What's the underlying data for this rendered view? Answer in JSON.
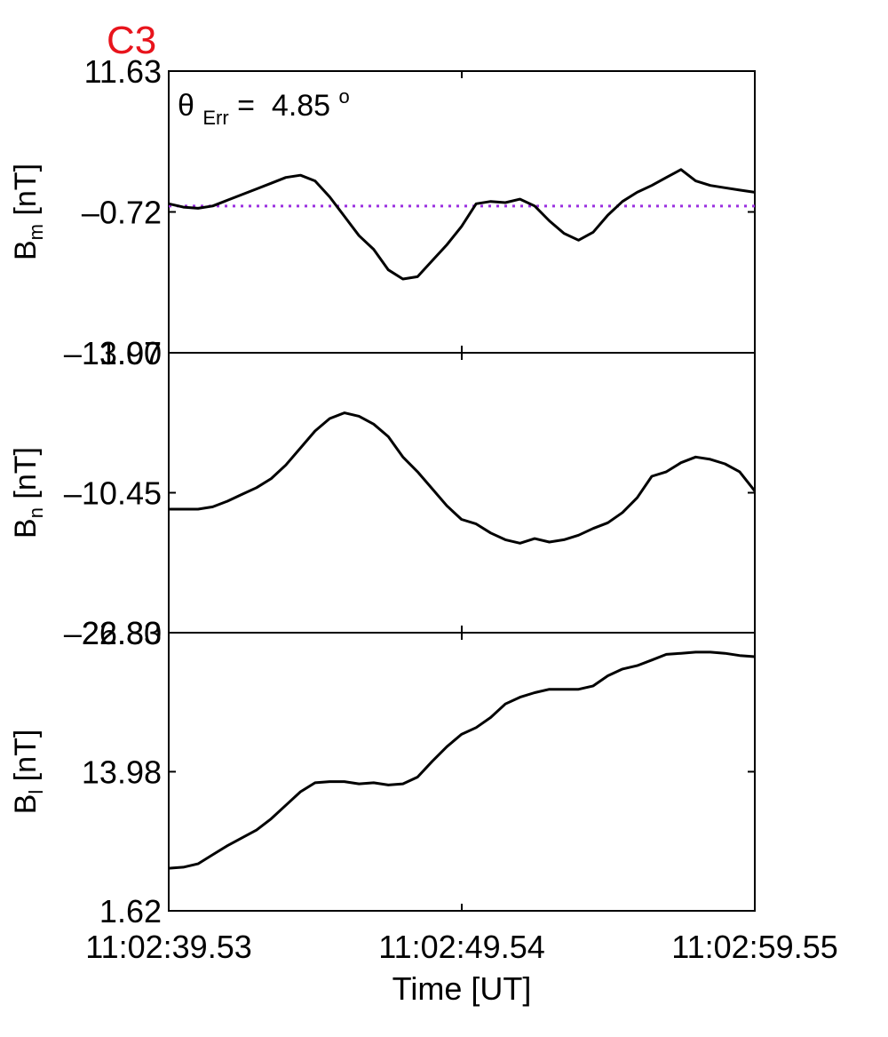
{
  "panel_label": "C3",
  "colors": {
    "label": "#e8141c",
    "trace": "#000000",
    "reference": "#9b30e0",
    "axis": "#000000"
  },
  "annotation": {
    "symbol": "θ",
    "subscript": "Err",
    "value_text": "=  4.85",
    "superscript": "o"
  },
  "x_axis": {
    "ticks": [
      "11:02:39.53",
      "11:02:49.54",
      "11:02:59.55"
    ],
    "label": "Time [UT]"
  },
  "chart_data": [
    {
      "type": "line",
      "panel": "top",
      "ylabel": {
        "main": "B",
        "sub": "m",
        "unit": "[nT]"
      },
      "ylim": [
        -13.07,
        11.63
      ],
      "yticks": [
        "11.63",
        "–0.72",
        "–13.07"
      ],
      "ytick_values": [
        11.63,
        -0.72,
        -13.07
      ],
      "xlim": [
        0,
        20.02
      ],
      "reference_line": {
        "y": -0.2,
        "style": "dotted"
      },
      "series": [
        {
          "x": [
            0,
            0.5,
            1,
            1.5,
            2,
            2.5,
            3,
            3.5,
            4,
            4.5,
            5,
            5.5,
            6,
            6.5,
            7,
            7.5,
            8,
            8.5,
            9,
            9.5,
            10,
            10.5,
            11,
            11.5,
            12,
            12.5,
            13,
            13.5,
            14,
            14.5,
            15,
            15.5,
            16,
            16.5,
            17,
            17.5,
            18,
            18.5,
            19,
            19.5,
            20.02
          ],
          "y": [
            0.0,
            -0.3,
            -0.4,
            -0.2,
            0.3,
            0.8,
            1.3,
            1.8,
            2.3,
            2.5,
            2.0,
            0.6,
            -1.1,
            -2.8,
            -4.0,
            -5.8,
            -6.6,
            -6.4,
            -5.0,
            -3.6,
            -2.0,
            0.0,
            0.2,
            0.1,
            0.4,
            -0.2,
            -1.5,
            -2.6,
            -3.2,
            -2.5,
            -1.0,
            0.2,
            1.0,
            1.6,
            2.3,
            3.0,
            2.0,
            1.6,
            1.4,
            1.2,
            1.0
          ]
        }
      ]
    },
    {
      "type": "line",
      "panel": "middle",
      "ylabel": {
        "main": "B",
        "sub": "n",
        "unit": "[nT]"
      },
      "ylim": [
        -22.8,
        1.9
      ],
      "yticks": [
        "1.90",
        "–10.45",
        "–22.80"
      ],
      "ytick_values": [
        1.9,
        -10.45,
        -22.8
      ],
      "xlim": [
        0,
        20.02
      ],
      "series": [
        {
          "x": [
            0,
            0.5,
            1,
            1.5,
            2,
            2.5,
            3,
            3.5,
            4,
            4.5,
            5,
            5.5,
            6,
            6.5,
            7,
            7.5,
            8,
            8.5,
            9,
            9.5,
            10,
            10.5,
            11,
            11.5,
            12,
            12.5,
            13,
            13.5,
            14,
            14.5,
            15,
            15.5,
            16,
            16.5,
            17,
            17.5,
            18,
            18.5,
            19,
            19.5,
            20.02
          ],
          "y": [
            -11.9,
            -11.9,
            -11.9,
            -11.7,
            -11.2,
            -10.6,
            -10.0,
            -9.2,
            -8.0,
            -6.5,
            -5.0,
            -3.9,
            -3.4,
            -3.7,
            -4.4,
            -5.5,
            -7.3,
            -8.6,
            -10.1,
            -11.6,
            -12.8,
            -13.2,
            -14.0,
            -14.6,
            -14.9,
            -14.5,
            -14.8,
            -14.6,
            -14.2,
            -13.6,
            -13.1,
            -12.2,
            -10.9,
            -9.0,
            -8.6,
            -7.8,
            -7.3,
            -7.5,
            -7.9,
            -8.6,
            -10.3
          ]
        }
      ]
    },
    {
      "type": "line",
      "panel": "bottom",
      "ylabel": {
        "main": "B",
        "sub": "l",
        "unit": "[nT]"
      },
      "ylim": [
        1.62,
        26.33
      ],
      "yticks": [
        "26.33",
        "13.98",
        "1.62"
      ],
      "ytick_values": [
        26.33,
        13.98,
        1.62
      ],
      "xlim": [
        0,
        20.02
      ],
      "series": [
        {
          "x": [
            0,
            0.5,
            1,
            1.5,
            2,
            2.5,
            3,
            3.5,
            4,
            4.5,
            5,
            5.5,
            6,
            6.5,
            7,
            7.5,
            8,
            8.5,
            9,
            9.5,
            10,
            10.5,
            11,
            11.5,
            12,
            12.5,
            13,
            13.5,
            14,
            14.5,
            15,
            15.5,
            16,
            16.5,
            17,
            17.5,
            18,
            18.5,
            19,
            19.5,
            20.02
          ],
          "y": [
            5.4,
            5.5,
            5.8,
            6.6,
            7.4,
            8.1,
            8.8,
            9.8,
            11.0,
            12.2,
            13.0,
            13.1,
            13.1,
            12.9,
            13.0,
            12.8,
            12.9,
            13.5,
            14.9,
            16.2,
            17.3,
            17.9,
            18.8,
            20.0,
            20.6,
            21.0,
            21.3,
            21.3,
            21.3,
            21.6,
            22.5,
            23.1,
            23.4,
            23.9,
            24.4,
            24.5,
            24.6,
            24.6,
            24.5,
            24.3,
            24.2
          ]
        }
      ]
    }
  ]
}
